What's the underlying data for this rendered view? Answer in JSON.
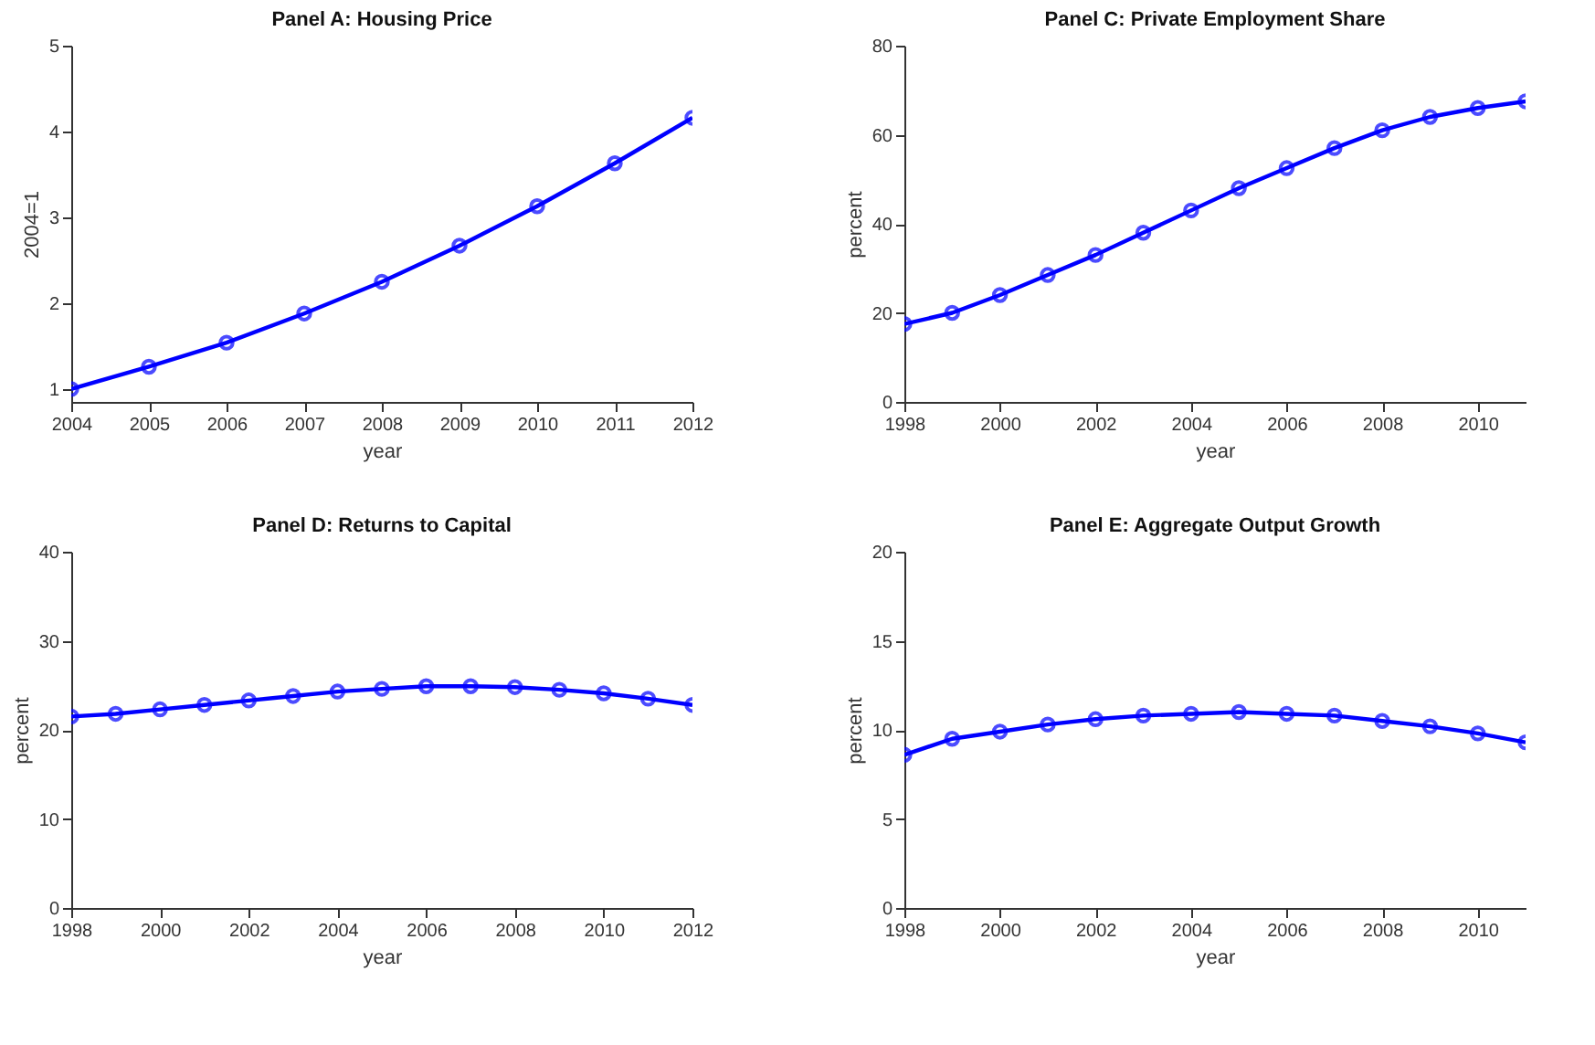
{
  "chart_data": [
    {
      "type": "line",
      "title": "Panel A: Housing Price",
      "xlabel": "year",
      "ylabel": "2004=1",
      "x": [
        2004,
        2005,
        2006,
        2007,
        2008,
        2009,
        2010,
        2011,
        2012
      ],
      "series": [
        {
          "color": "#0000ff",
          "values": [
            1.0,
            1.26,
            1.54,
            1.88,
            2.25,
            2.67,
            3.13,
            3.63,
            4.16
          ]
        }
      ],
      "xlim": [
        2004,
        2012
      ],
      "xticks": [
        2004,
        2005,
        2006,
        2007,
        2008,
        2009,
        2010,
        2011,
        2012
      ],
      "ylim": [
        0.85,
        5
      ],
      "yticks": [
        1,
        2,
        3,
        4,
        5
      ],
      "grid": false,
      "marker": "circle",
      "line_style": "solid"
    },
    {
      "type": "line",
      "title": "Panel C: Private Employment Share",
      "xlabel": "year",
      "ylabel": "percent",
      "x": [
        1998,
        1999,
        2000,
        2001,
        2002,
        2003,
        2004,
        2005,
        2006,
        2007,
        2008,
        2009,
        2010,
        2011
      ],
      "series": [
        {
          "color": "#0000ff",
          "values": [
            17.5,
            20,
            24,
            28.5,
            33,
            38,
            43,
            48,
            52.5,
            57,
            61,
            64,
            66,
            67.5
          ]
        }
      ],
      "xlim": [
        1998,
        2011
      ],
      "xticks": [
        1998,
        2000,
        2002,
        2004,
        2006,
        2008,
        2010
      ],
      "ylim": [
        0,
        80
      ],
      "yticks": [
        0,
        20,
        40,
        60,
        80
      ],
      "grid": false,
      "marker": "circle",
      "line_style": "solid"
    },
    {
      "type": "line",
      "title": "Panel D: Returns to Capital",
      "xlabel": "year",
      "ylabel": "percent",
      "x": [
        1998,
        1999,
        2000,
        2001,
        2002,
        2003,
        2004,
        2005,
        2006,
        2007,
        2008,
        2009,
        2010,
        2011,
        2012
      ],
      "series": [
        {
          "color": "#0000ff",
          "values": [
            21.5,
            21.8,
            22.3,
            22.8,
            23.3,
            23.8,
            24.3,
            24.6,
            24.9,
            24.9,
            24.8,
            24.5,
            24.1,
            23.5,
            22.8
          ]
        }
      ],
      "xlim": [
        1998,
        2012
      ],
      "xticks": [
        1998,
        2000,
        2002,
        2004,
        2006,
        2008,
        2010,
        2012
      ],
      "ylim": [
        0,
        40
      ],
      "yticks": [
        0,
        10,
        20,
        30,
        40
      ],
      "grid": false,
      "marker": "circle",
      "line_style": "solid"
    },
    {
      "type": "line",
      "title": "Panel E: Aggregate Output Growth",
      "xlabel": "year",
      "ylabel": "percent",
      "x": [
        1998,
        1999,
        2000,
        2001,
        2002,
        2003,
        2004,
        2005,
        2006,
        2007,
        2008,
        2009,
        2010,
        2011
      ],
      "series": [
        {
          "color": "#0000ff",
          "values": [
            8.6,
            9.5,
            9.9,
            10.3,
            10.6,
            10.8,
            10.9,
            11.0,
            10.9,
            10.8,
            10.5,
            10.2,
            9.8,
            9.3
          ]
        }
      ],
      "xlim": [
        1998,
        2011
      ],
      "xticks": [
        1998,
        2000,
        2002,
        2004,
        2006,
        2008,
        2010
      ],
      "ylim": [
        0,
        20
      ],
      "yticks": [
        0,
        5,
        10,
        15,
        20
      ],
      "grid": false,
      "marker": "circle",
      "line_style": "solid"
    }
  ]
}
